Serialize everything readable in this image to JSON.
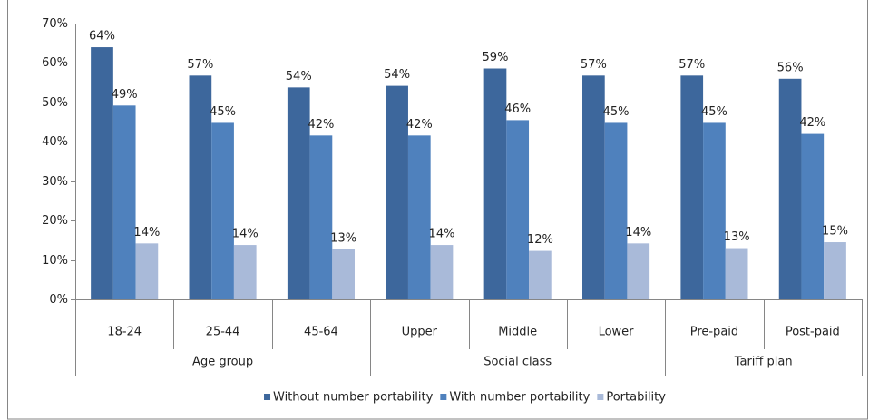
{
  "chart_data": {
    "type": "bar",
    "categories": [
      "18-24",
      "25-44",
      "45-64",
      "Upper",
      "Middle",
      "Lower",
      "Pre-paid",
      "Post-paid"
    ],
    "groups": [
      "Age group",
      "Age group",
      "Age group",
      "Social class",
      "Social class",
      "Social class",
      "Tariff plan",
      "Tariff plan"
    ],
    "series": [
      {
        "name": "Without number portability",
        "color": "#3d679c",
        "values": [
          64,
          56.8,
          53.8,
          54.2,
          58.6,
          56.8,
          56.8,
          56
        ],
        "value_labels": [
          "64%",
          "57%",
          "54%",
          "54%",
          "59%",
          "57%",
          "57%",
          "56%"
        ]
      },
      {
        "name": "With number portability",
        "color": "#4f81bd",
        "values": [
          49.2,
          44.8,
          41.6,
          41.6,
          45.5,
          44.8,
          44.8,
          42
        ],
        "value_labels": [
          "49%",
          "45%",
          "42%",
          "42%",
          "46%",
          "45%",
          "45%",
          "42%"
        ]
      },
      {
        "name": "Portability",
        "color": "#a9bad9",
        "values": [
          14.2,
          13.8,
          12.7,
          13.8,
          12.3,
          14.2,
          13,
          14.5
        ],
        "value_labels": [
          "14%",
          "14%",
          "13%",
          "14%",
          "12%",
          "14%",
          "13%",
          "15%"
        ]
      }
    ],
    "ylim": [
      0,
      70
    ],
    "yticks": [
      {
        "value": 0,
        "label": "0%"
      },
      {
        "value": 10,
        "label": "10%"
      },
      {
        "value": 20,
        "label": "20%"
      },
      {
        "value": 30,
        "label": "30%"
      },
      {
        "value": 40,
        "label": "40%"
      },
      {
        "value": 50,
        "label": "50%"
      },
      {
        "value": 60,
        "label": "60%"
      },
      {
        "value": 70,
        "label": "70%"
      }
    ],
    "grid": false,
    "legend": "bottom"
  }
}
